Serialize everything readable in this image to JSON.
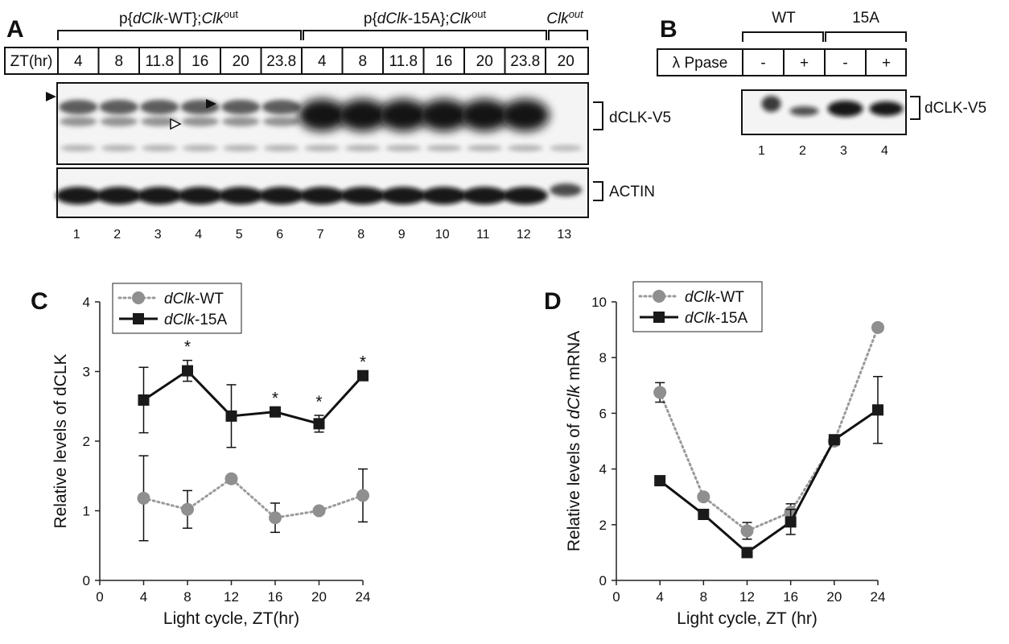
{
  "panel_a": {
    "label": "A",
    "groups": [
      {
        "prefix": "p{",
        "italic": "dClk",
        "suffix": "-WT};",
        "base": "Clk",
        "sup": "out"
      },
      {
        "prefix": "p{",
        "italic": "dClk",
        "suffix": "-15A};",
        "base": "Clk",
        "sup": "out"
      },
      {
        "prefix": "",
        "italic": "Clk",
        "suffix": "",
        "base": "",
        "sup": "out"
      }
    ],
    "zt_header": "ZT(hr)",
    "zt_values": [
      "4",
      "8",
      "11.8",
      "16",
      "20",
      "23.8",
      "4",
      "8",
      "11.8",
      "16",
      "20",
      "23.8",
      "20"
    ],
    "blot_labels": [
      "dCLK-V5",
      "ACTIN"
    ],
    "lane_numbers": [
      "1",
      "2",
      "3",
      "4",
      "5",
      "6",
      "7",
      "8",
      "9",
      "10",
      "11",
      "12",
      "13"
    ]
  },
  "panel_b": {
    "label": "B",
    "groups": [
      "WT",
      "15A"
    ],
    "row_label": "λ Ppase",
    "treatments": [
      "-",
      "+",
      "-",
      "+"
    ],
    "blot_label": "dCLK-V5",
    "lane_numbers": [
      "1",
      "2",
      "3",
      "4"
    ]
  },
  "chart_data": [
    {
      "type": "line",
      "panel": "C",
      "ylabel": "Relative levels of dCLK",
      "xlabel": "Light cycle, ZT(hr)",
      "xlim": [
        0,
        24
      ],
      "ylim": [
        0,
        4
      ],
      "xticks": [
        "0",
        "4",
        "8",
        "12",
        "16",
        "20",
        "24"
      ],
      "yticks": [
        "0",
        "1",
        "2",
        "3",
        "4"
      ],
      "legend_position": "top-left",
      "series": [
        {
          "name_italic": "dClk",
          "name_suffix": "-WT",
          "style": "dotted",
          "marker": "circle",
          "color": "#8f8f8f",
          "x": [
            4,
            8,
            12,
            16,
            20,
            24
          ],
          "y": [
            1.18,
            1.02,
            1.46,
            0.9,
            1.0,
            1.22
          ],
          "err": [
            0.61,
            0.27,
            0.0,
            0.21,
            0.0,
            0.38
          ]
        },
        {
          "name_italic": "dClk",
          "name_suffix": "-15A",
          "style": "solid",
          "marker": "square",
          "color": "#1a1a1a",
          "x": [
            4,
            8,
            12,
            16,
            20,
            24
          ],
          "y": [
            2.59,
            3.01,
            2.36,
            2.42,
            2.25,
            2.94
          ],
          "err": [
            0.47,
            0.15,
            0.45,
            0.0,
            0.12,
            0.0
          ]
        }
      ],
      "significance_x": [
        8,
        16,
        20,
        24
      ],
      "significance_mark": "*"
    },
    {
      "type": "line",
      "panel": "D",
      "ylabel_prefix": "Relative levels of ",
      "ylabel_italic": "dClk",
      "ylabel_suffix": " mRNA",
      "xlabel": "Light cycle, ZT (hr)",
      "xlim": [
        0,
        24
      ],
      "ylim": [
        0,
        10
      ],
      "xticks": [
        "0",
        "4",
        "8",
        "12",
        "16",
        "20",
        "24"
      ],
      "yticks": [
        "0",
        "2",
        "4",
        "6",
        "8",
        "10"
      ],
      "legend_position": "top-left",
      "series": [
        {
          "name_italic": "dClk",
          "name_suffix": "-WT",
          "style": "dotted",
          "marker": "circle",
          "color": "#8f8f8f",
          "x": [
            4,
            8,
            12,
            16,
            20,
            24
          ],
          "y": [
            6.75,
            3.0,
            1.78,
            2.45,
            5.0,
            9.08
          ],
          "err": [
            0.35,
            0.0,
            0.3,
            0.3,
            0.0,
            0.0
          ]
        },
        {
          "name_italic": "dClk",
          "name_suffix": "-15A",
          "style": "solid",
          "marker": "square",
          "color": "#1a1a1a",
          "x": [
            4,
            8,
            12,
            16,
            20,
            24
          ],
          "y": [
            3.58,
            2.37,
            1.0,
            2.1,
            5.05,
            6.12
          ],
          "err": [
            0.0,
            0.0,
            0.0,
            0.45,
            0.0,
            1.2
          ]
        }
      ]
    }
  ]
}
